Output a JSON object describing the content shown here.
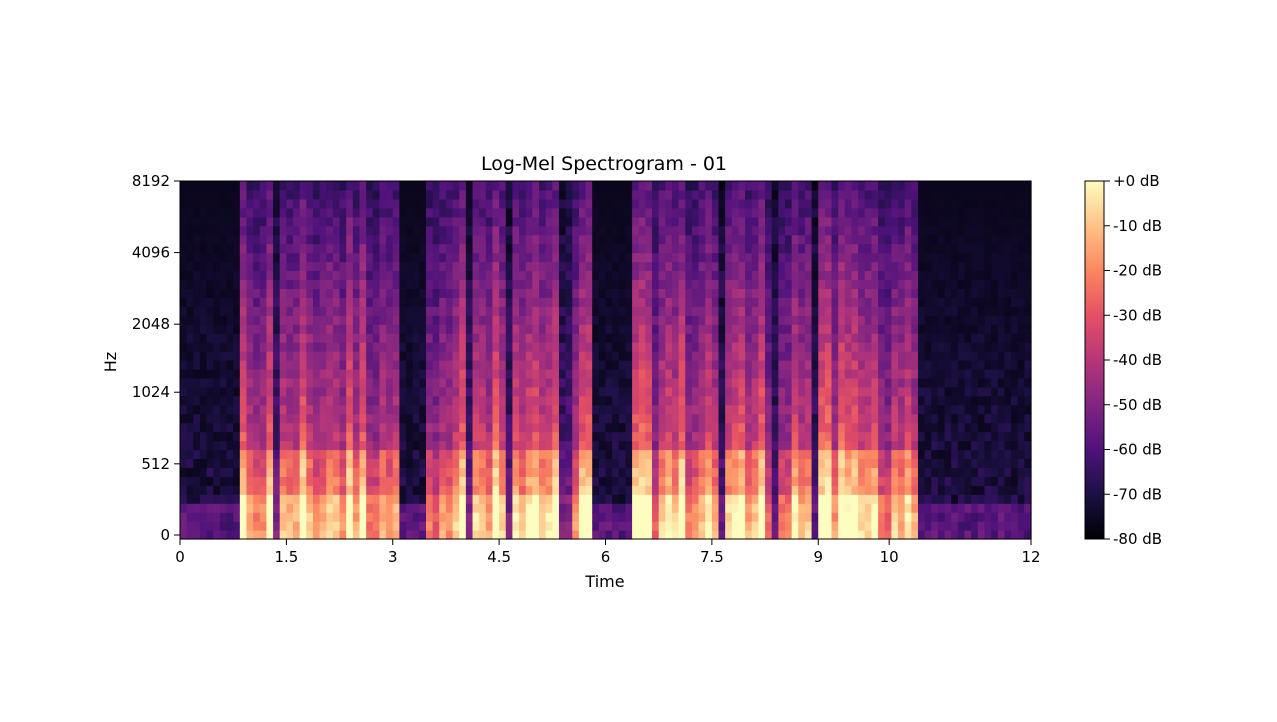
{
  "chart_data": {
    "type": "heatmap",
    "title": "Log-Mel Spectrogram - 01",
    "xlabel": "Time",
    "ylabel": "Hz",
    "xlim": [
      0,
      12
    ],
    "x_ticks": [
      "0",
      "1.5",
      "3",
      "4.5",
      "6",
      "7.5",
      "9",
      "10",
      "12"
    ],
    "y_ticks": [
      "0",
      "512",
      "1024",
      "2048",
      "4096",
      "8192"
    ],
    "colorbar": {
      "range_db": [
        -80,
        0
      ],
      "ticks": [
        "+0 dB",
        "-10 dB",
        "-20 dB",
        "-30 dB",
        "-40 dB",
        "-50 dB",
        "-60 dB",
        "-70 dB",
        "-80 dB"
      ],
      "colormap": "magma"
    },
    "speech_segments_s": [
      [
        0.85,
        3.05
      ],
      [
        3.45,
        5.85
      ],
      [
        6.4,
        10.4
      ]
    ],
    "silence_gaps_s": [
      [
        0,
        0.8
      ],
      [
        3.1,
        3.4
      ],
      [
        5.9,
        6.35
      ],
      [
        10.45,
        12
      ]
    ],
    "grid": false
  }
}
